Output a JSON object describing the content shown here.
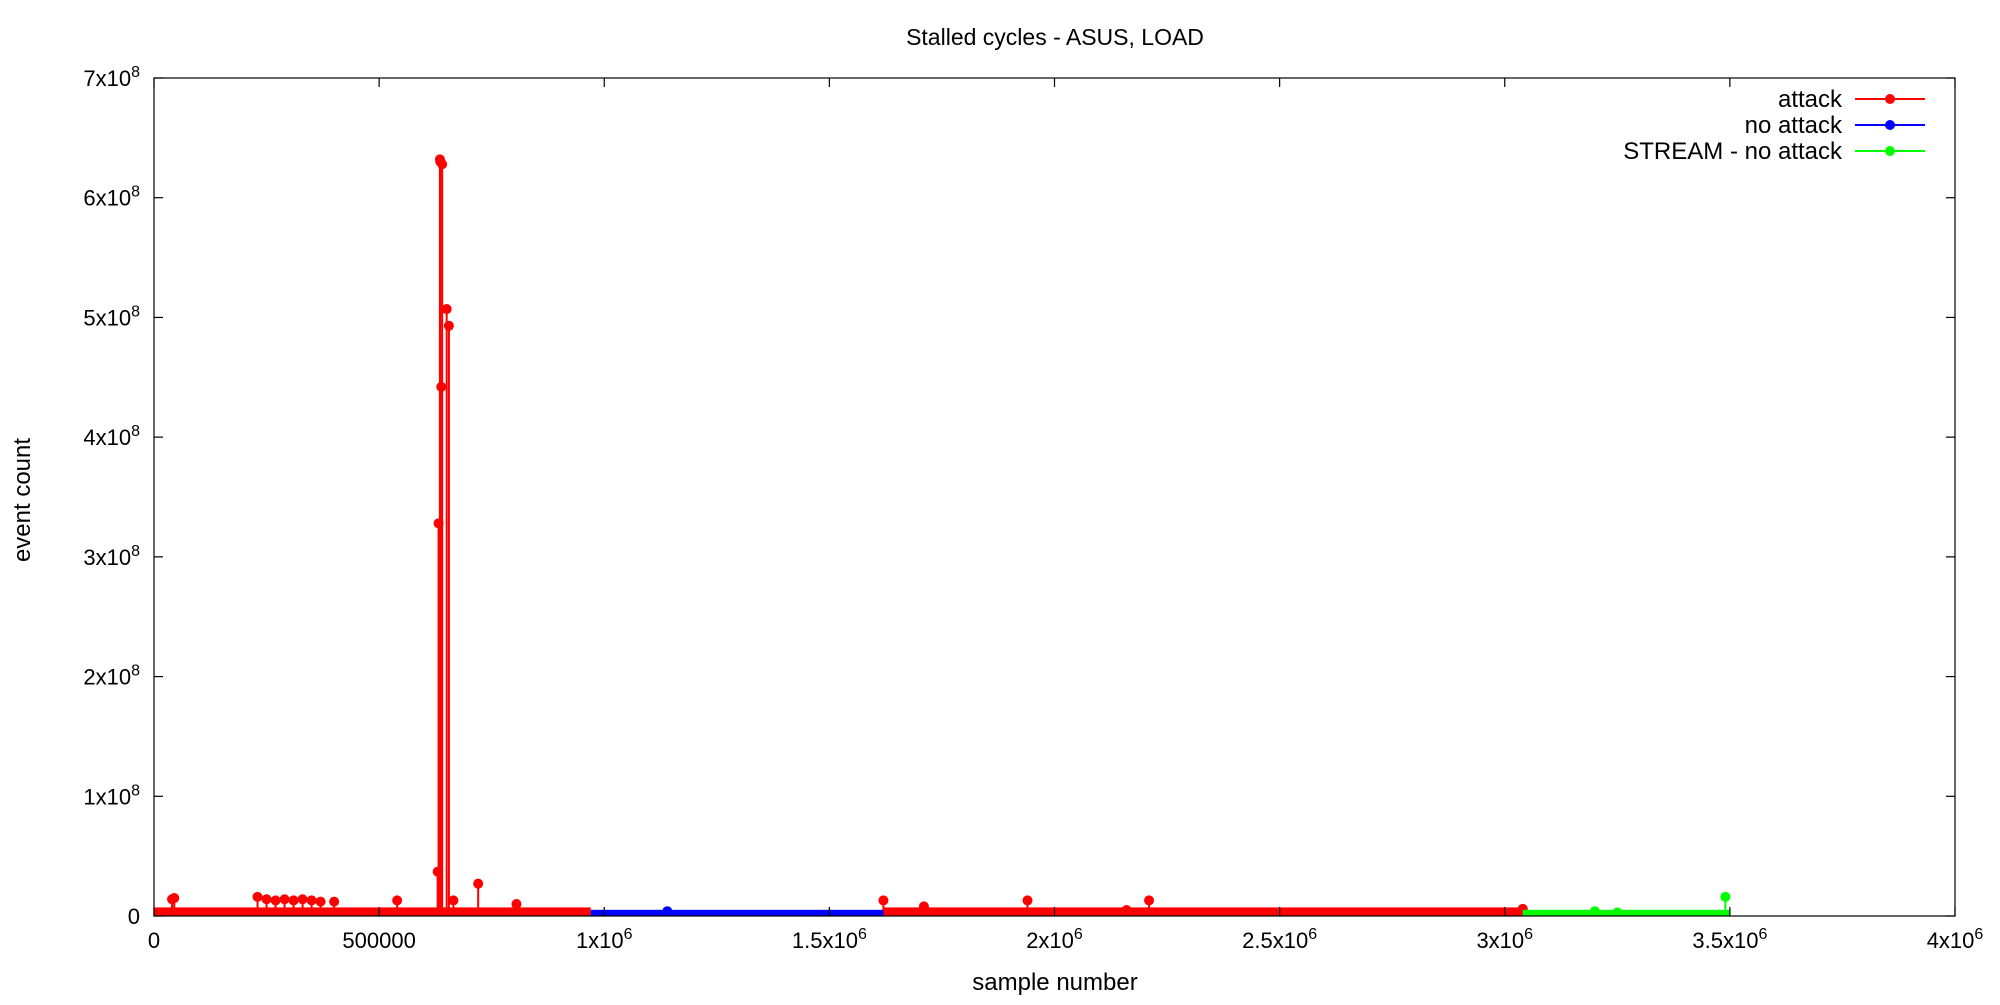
{
  "chart_data": {
    "type": "line",
    "title": "Stalled cycles - ASUS, LOAD",
    "xlabel": "sample number",
    "ylabel": "event count",
    "xlim": [
      0,
      4000000
    ],
    "ylim": [
      0,
      700000000
    ],
    "grid": false,
    "legend_position": "top-right",
    "x_ticks": [
      {
        "value": 0,
        "label": "0"
      },
      {
        "value": 500000,
        "label": "500000"
      },
      {
        "value": 1000000,
        "label": "1x10",
        "exp": "6"
      },
      {
        "value": 1500000,
        "label": "1.5x10",
        "exp": "6"
      },
      {
        "value": 2000000,
        "label": "2x10",
        "exp": "6"
      },
      {
        "value": 2500000,
        "label": "2.5x10",
        "exp": "6"
      },
      {
        "value": 3000000,
        "label": "3x10",
        "exp": "6"
      },
      {
        "value": 3500000,
        "label": "3.5x10",
        "exp": "6"
      },
      {
        "value": 4000000,
        "label": "4x10",
        "exp": "6"
      }
    ],
    "y_ticks": [
      {
        "value": 0,
        "label": "0"
      },
      {
        "value": 100000000,
        "label": "1x10",
        "exp": "8"
      },
      {
        "value": 200000000,
        "label": "2x10",
        "exp": "8"
      },
      {
        "value": 300000000,
        "label": "3x10",
        "exp": "8"
      },
      {
        "value": 400000000,
        "label": "4x10",
        "exp": "8"
      },
      {
        "value": 500000000,
        "label": "5x10",
        "exp": "8"
      },
      {
        "value": 600000000,
        "label": "6x10",
        "exp": "8"
      },
      {
        "value": 700000000,
        "label": "7x10",
        "exp": "8"
      }
    ],
    "series": [
      {
        "name": "attack",
        "color": "#ff0000",
        "baseline": 3000000,
        "segments": [
          [
            0,
            970000
          ],
          [
            1620000,
            3040000
          ]
        ],
        "x": [
          5000,
          40000,
          45000,
          230000,
          250000,
          270000,
          290000,
          310000,
          330000,
          350000,
          370000,
          400000,
          540000,
          630000,
          632000,
          635000,
          636000,
          638000,
          640000,
          650000,
          655000,
          665000,
          720000,
          805000,
          1620000,
          1710000,
          1940000,
          2160000,
          2210000,
          3040000
        ],
        "y": [
          2000000,
          14000000,
          15000000,
          16000000,
          14000000,
          13000000,
          14000000,
          13000000,
          14000000,
          13000000,
          12000000,
          12000000,
          13000000,
          37000000,
          328000000,
          632000000,
          630000000,
          442000000,
          628000000,
          507000000,
          493000000,
          13000000,
          27000000,
          10000000,
          13000000,
          8000000,
          13000000,
          5000000,
          13000000,
          6000000
        ]
      },
      {
        "name": "no attack",
        "color": "#0000ff",
        "baseline": 1000000,
        "segments": [
          [
            970000,
            1620000
          ]
        ],
        "x": [
          1140000
        ],
        "y": [
          4000000
        ]
      },
      {
        "name": "STREAM - no attack",
        "color": "#00ff00",
        "baseline": 1000000,
        "segments": [
          [
            3040000,
            3500000
          ]
        ],
        "x": [
          3200000,
          3250000,
          3490000
        ],
        "y": [
          4000000,
          3000000,
          16000000
        ]
      }
    ]
  }
}
